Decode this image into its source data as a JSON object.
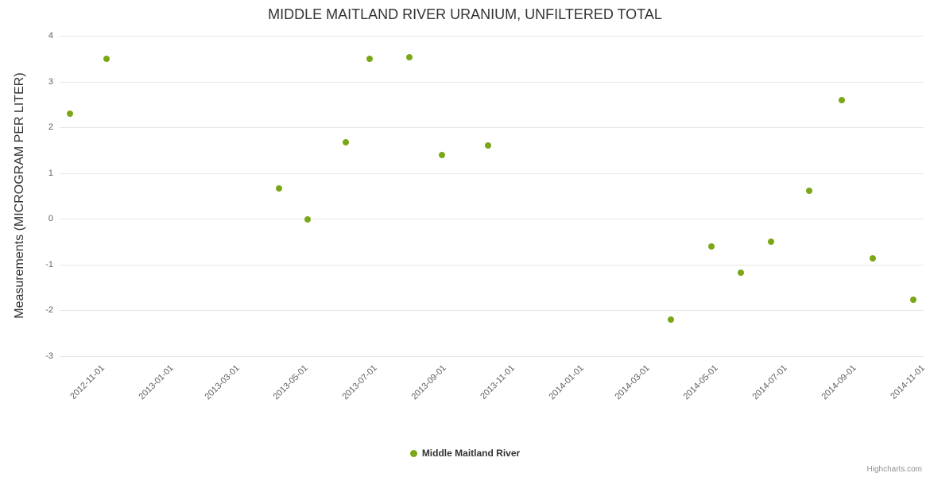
{
  "credits": {
    "label": "Highcharts.com"
  },
  "legend": {
    "items": [
      {
        "label": "Middle Maitland River",
        "color": "#7aa716"
      }
    ]
  },
  "chart_data": {
    "type": "scatter",
    "title": "MIDDLE MAITLAND RIVER URANIUM, UNFILTERED TOTAL",
    "xlabel": "",
    "ylabel": "Measurements (MICROGRAM PER LITER)",
    "ylim": [
      -3,
      4
    ],
    "y_ticks": [
      4,
      3,
      2,
      1,
      0,
      -1,
      -2,
      -3
    ],
    "x_range": [
      "2012-09-26",
      "2014-11-04"
    ],
    "x_ticks": [
      "2012-11-01",
      "2013-01-01",
      "2013-03-01",
      "2013-05-01",
      "2013-07-01",
      "2013-09-01",
      "2013-11-01",
      "2014-01-01",
      "2014-03-01",
      "2014-05-01",
      "2014-07-01",
      "2014-09-01",
      "2014-11-01"
    ],
    "grid": true,
    "legend_position": "bottom-center",
    "series": [
      {
        "name": "Middle Maitland River",
        "color": "#7aa716",
        "points": [
          [
            "2012-10-05",
            2.3
          ],
          [
            "2012-11-07",
            3.5
          ],
          [
            "2013-04-09",
            0.67
          ],
          [
            "2013-05-05",
            -0.02
          ],
          [
            "2013-06-08",
            1.68
          ],
          [
            "2013-06-29",
            3.49
          ],
          [
            "2013-08-03",
            3.53
          ],
          [
            "2013-09-01",
            1.4
          ],
          [
            "2013-10-12",
            1.61
          ],
          [
            "2014-03-24",
            -2.2
          ],
          [
            "2014-04-29",
            -0.6
          ],
          [
            "2014-05-25",
            -1.18
          ],
          [
            "2014-06-21",
            -0.5
          ],
          [
            "2014-07-25",
            0.62
          ],
          [
            "2014-08-23",
            2.6
          ],
          [
            "2014-09-20",
            -0.87
          ],
          [
            "2014-10-26",
            -1.77
          ]
        ]
      }
    ]
  }
}
